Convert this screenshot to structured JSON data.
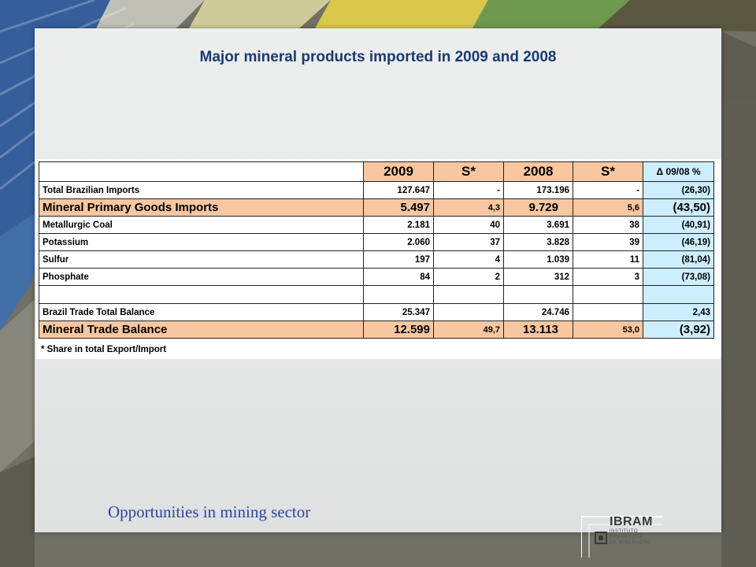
{
  "title": "Major mineral products imported in 2009 and 2008",
  "table": {
    "headers": [
      "",
      "2009",
      "S*",
      "2008",
      "S*",
      "Δ 09/08 %"
    ],
    "rows": [
      {
        "label": "Total Brazilian Imports",
        "v2009": "127.647",
        "s2009": "-",
        "v2008": "173.196",
        "s2008": "-",
        "delta": "(26,30)",
        "highlight": false
      },
      {
        "label": "Mineral Primary Goods Imports",
        "v2009": "5.497",
        "s2009": "4,3",
        "v2008": "9.729",
        "s2008": "5,6",
        "delta": "(43,50)",
        "highlight": true
      },
      {
        "label": "Metallurgic Coal",
        "v2009": "2.181",
        "s2009": "40",
        "v2008": "3.691",
        "s2008": "38",
        "delta": "(40,91)",
        "highlight": false
      },
      {
        "label": "Potassium",
        "v2009": "2.060",
        "s2009": "37",
        "v2008": "3.828",
        "s2008": "39",
        "delta": "(46,19)",
        "highlight": false
      },
      {
        "label": "Sulfur",
        "v2009": "197",
        "s2009": "4",
        "v2008": "1.039",
        "s2008": "11",
        "delta": "(81,04)",
        "highlight": false
      },
      {
        "label": "Phosphate",
        "v2009": "84",
        "s2009": "2",
        "v2008": "312",
        "s2008": "3",
        "delta": "(73,08)",
        "highlight": false
      },
      {
        "label": "",
        "v2009": "",
        "s2009": "",
        "v2008": "",
        "s2008": "",
        "delta": "",
        "highlight": false,
        "blank": true
      },
      {
        "label": "Brazil Trade Total Balance",
        "v2009": "25.347",
        "s2009": "",
        "v2008": "24.746",
        "s2008": "",
        "delta": "2,43",
        "highlight": false
      },
      {
        "label": "Mineral Trade Balance",
        "v2009": "12.599",
        "s2009": "49,7",
        "v2008": "13.113",
        "s2008": "53,0",
        "delta": "(3,92)",
        "highlight": true
      }
    ]
  },
  "footnote": "* Share in total  Export/Import",
  "subtitle": "Opportunities in mining sector",
  "logo": {
    "main": "IBRAM",
    "line1": "INSTITUTO BRASILEIRO",
    "line2": "DE MINERAÇÃO"
  }
}
